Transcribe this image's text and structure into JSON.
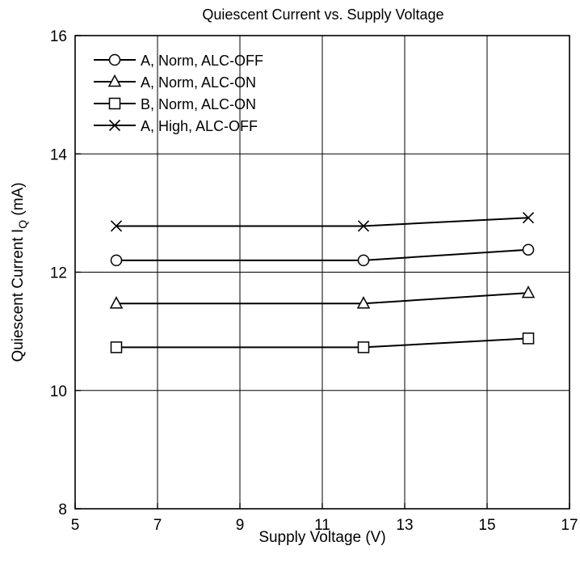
{
  "chart_data": {
    "type": "line",
    "title": "Quiescent Current vs. Supply Voltage",
    "xlabel": "Supply Voltage  (V)",
    "ylabel": "Quiescent Current  I",
    "ylabel_sub": "Q",
    "ylabel_unit": "  (mA)",
    "xlim": [
      5,
      17
    ],
    "ylim": [
      8,
      16
    ],
    "xticks": [
      5,
      7,
      9,
      11,
      13,
      15,
      17
    ],
    "yticks": [
      8,
      10,
      12,
      14,
      16
    ],
    "grid": true,
    "legend_position": "top-left",
    "series": [
      {
        "name": "A, Norm, ALC-OFF",
        "marker": "circle",
        "x": [
          6,
          12,
          16
        ],
        "y": [
          12.2,
          12.2,
          12.38
        ]
      },
      {
        "name": "A, Norm, ALC-ON",
        "marker": "triangle",
        "x": [
          6,
          12,
          16
        ],
        "y": [
          11.47,
          11.47,
          11.65
        ]
      },
      {
        "name": "B, Norm, ALC-ON",
        "marker": "square",
        "x": [
          6,
          12,
          16
        ],
        "y": [
          10.73,
          10.73,
          10.88
        ]
      },
      {
        "name": "A, High, ALC-OFF",
        "marker": "cross",
        "x": [
          6,
          12,
          16
        ],
        "y": [
          12.78,
          12.78,
          12.92
        ]
      }
    ]
  }
}
